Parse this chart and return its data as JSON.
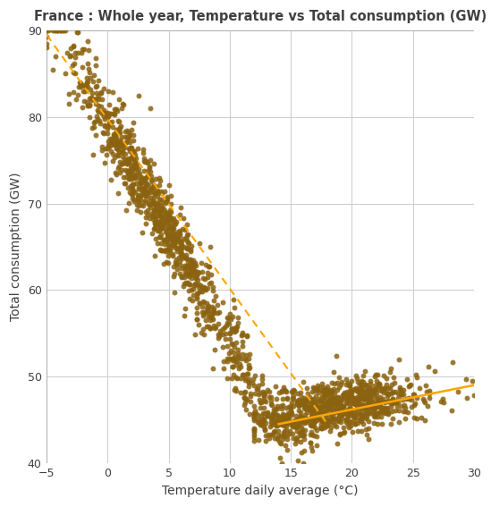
{
  "title": "France : Whole year, Temperature vs Total consumption (GW)",
  "xlabel": "Temperature daily average (°C)",
  "ylabel": "Total consumption (GW)",
  "xlim": [
    -5,
    30
  ],
  "ylim": [
    40,
    90
  ],
  "xticks": [
    -5,
    0,
    5,
    10,
    15,
    20,
    25,
    30
  ],
  "yticks": [
    40,
    50,
    60,
    70,
    80,
    90
  ],
  "dot_color": "#8B6310",
  "line_color": "#FFA500",
  "line1_x": [
    -5,
    18
  ],
  "line1_y": [
    89.5,
    44.5
  ],
  "line2_x": [
    14,
    30
  ],
  "line2_y": [
    44.5,
    49.0
  ],
  "seed": 42,
  "background_color": "#ffffff",
  "title_color": "#404040",
  "axis_label_color": "#404040",
  "tick_color": "#404040",
  "grid_color": "#cccccc"
}
